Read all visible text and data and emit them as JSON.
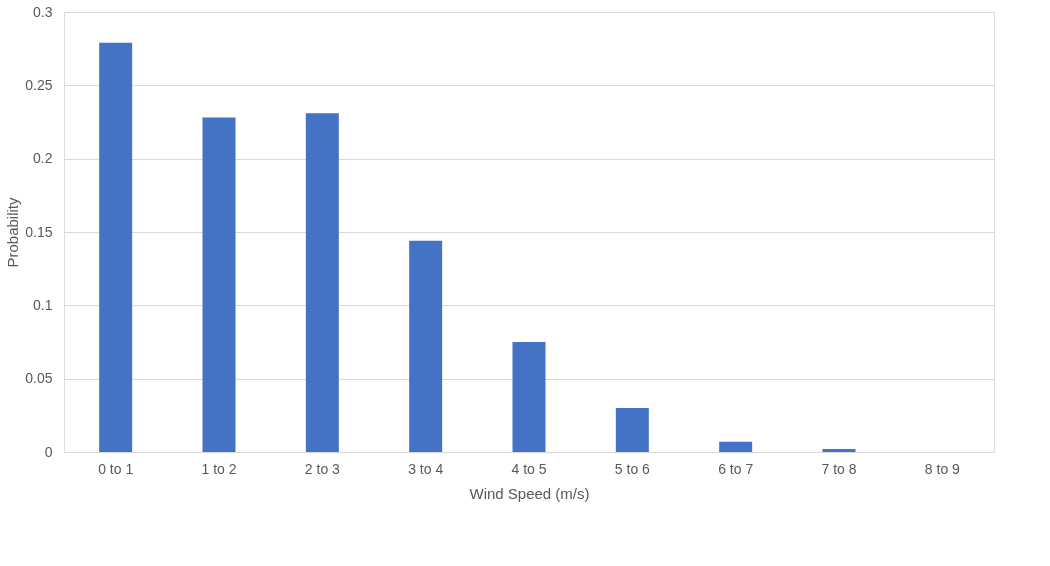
{
  "chart_data": {
    "type": "bar",
    "xlabel": "Wind Speed (m/s)",
    "ylabel": "Probability",
    "categories": [
      "0 to 1",
      "1 to 2",
      "2 to 3",
      "3 to 4",
      "4 to 5",
      "5 to 6",
      "6 to 7",
      "7 to 8",
      "8 to 9"
    ],
    "values": [
      0.279,
      0.228,
      0.231,
      0.144,
      0.075,
      0.03,
      0.007,
      0.002,
      0
    ],
    "color": "#4472c4",
    "ylim": [
      0,
      0.3
    ],
    "yticks": [
      0,
      0.05,
      0.1,
      0.15,
      0.2,
      0.25,
      0.3
    ],
    "grid": "y"
  }
}
